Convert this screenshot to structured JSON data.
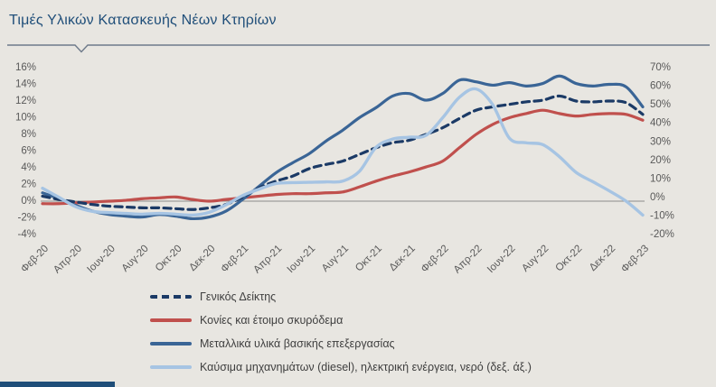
{
  "title": "Τιμές Υλικών Κατασκευής Νέων Κτηρίων",
  "colors": {
    "background": "#e8e6e1",
    "title": "#1f4e79",
    "axis_text": "#595959",
    "zero_line": "#8c8c8c",
    "title_rule": "#6e7a8a",
    "footer_bar": "#1f4e79"
  },
  "chart_data": {
    "type": "line",
    "title": "Τιμές Υλικών Κατασκευής Νέων Κτηρίων",
    "grid": false,
    "legend_position": "bottom",
    "x_tick_labels": [
      "Φεβ-20",
      "Απρ-20",
      "Ιουν-20",
      "Αυγ-20",
      "Οκτ-20",
      "Δεκ-20",
      "Φεβ-21",
      "Απρ-21",
      "Ιουν-21",
      "Αυγ-21",
      "Οκτ-21",
      "Δεκ-21",
      "Φεβ-22",
      "Απρ-22",
      "Ιουν-22",
      "Αυγ-22",
      "Οκτ-22",
      "Δεκ-22",
      "Φεβ-23"
    ],
    "x_months": [
      "Φεβ-20",
      "Μαρ-20",
      "Απρ-20",
      "Μαϊ-20",
      "Ιουν-20",
      "Ιουλ-20",
      "Αυγ-20",
      "Σεπ-20",
      "Οκτ-20",
      "Νοε-20",
      "Δεκ-20",
      "Ιαν-21",
      "Φεβ-21",
      "Μαρ-21",
      "Απρ-21",
      "Μαϊ-21",
      "Ιουν-21",
      "Ιουλ-21",
      "Αυγ-21",
      "Σεπ-21",
      "Οκτ-21",
      "Νοε-21",
      "Δεκ-21",
      "Ιαν-22",
      "Φεβ-22",
      "Μαρ-22",
      "Απρ-22",
      "Μαϊ-22",
      "Ιουν-22",
      "Ιουλ-22",
      "Αυγ-22",
      "Σεπ-22",
      "Οκτ-22",
      "Νοε-22",
      "Δεκ-22",
      "Ιαν-23",
      "Φεβ-23"
    ],
    "left_axis": {
      "min": -4,
      "max": 16,
      "step": 2,
      "ticks": [
        "16%",
        "14%",
        "12%",
        "10%",
        "8%",
        "6%",
        "4%",
        "2%",
        "0%",
        "-2%",
        "-4%"
      ]
    },
    "right_axis": {
      "min": -20,
      "max": 70,
      "step": 10,
      "ticks": [
        "70%",
        "60%",
        "50%",
        "40%",
        "30%",
        "20%",
        "10%",
        "0%",
        "-10%",
        "-20%"
      ]
    },
    "series": [
      {
        "name": "Γενικός Δείκτης",
        "axis": "left",
        "style": "dashed",
        "color": "#1b3a66",
        "values": [
          0.6,
          0.2,
          -0.1,
          -0.4,
          -0.6,
          -0.7,
          -0.8,
          -0.8,
          -0.9,
          -1.0,
          -0.8,
          -0.4,
          0.5,
          1.6,
          2.4,
          3.0,
          3.9,
          4.4,
          4.8,
          5.6,
          6.4,
          7.0,
          7.3,
          8.0,
          8.8,
          9.9,
          10.9,
          11.3,
          11.6,
          11.9,
          12.1,
          12.6,
          12.0,
          11.9,
          12.0,
          11.8,
          10.4
        ]
      },
      {
        "name": "Κονίες και έτοιμο σκυρόδεμα",
        "axis": "left",
        "style": "solid",
        "color": "#c0504d",
        "values": [
          -0.3,
          -0.3,
          -0.2,
          -0.1,
          0.0,
          0.1,
          0.3,
          0.4,
          0.5,
          0.2,
          0.0,
          0.2,
          0.4,
          0.6,
          0.8,
          0.9,
          0.9,
          1.0,
          1.1,
          1.7,
          2.4,
          3.0,
          3.5,
          4.1,
          4.8,
          6.4,
          8.0,
          9.2,
          10.0,
          10.5,
          10.9,
          10.5,
          10.2,
          10.4,
          10.5,
          10.4,
          9.7
        ]
      },
      {
        "name": "Μεταλλικά υλικά βασικής επεξεργασίας",
        "axis": "left",
        "style": "solid",
        "color": "#3a6596",
        "values": [
          1.0,
          0.3,
          -0.5,
          -1.2,
          -1.6,
          -1.8,
          -1.9,
          -1.6,
          -1.8,
          -2.1,
          -1.9,
          -1.2,
          0.2,
          1.8,
          3.4,
          4.6,
          5.7,
          7.2,
          8.5,
          10.0,
          11.2,
          12.6,
          12.9,
          12.1,
          12.9,
          14.5,
          14.3,
          13.9,
          14.2,
          13.8,
          14.1,
          15.0,
          14.1,
          13.8,
          14.0,
          13.7,
          11.3
        ]
      },
      {
        "name": "Καύσιμα μηχανημάτων (diesel), ηλεκτρική ενέργεια, νερό (δεξ. άξ.)",
        "axis": "right",
        "style": "solid",
        "color": "#a6c4e3",
        "values": [
          5,
          0,
          -5,
          -7.5,
          -8.2,
          -8.6,
          -9,
          -8.6,
          -9,
          -9.5,
          -8,
          -4,
          1,
          4.5,
          7.5,
          8,
          8.2,
          8.4,
          8.8,
          14,
          27,
          31.5,
          32.5,
          33.5,
          43,
          54,
          58.5,
          50,
          32,
          29.5,
          28.5,
          22,
          13.5,
          8.5,
          3.5,
          -2,
          -9.5
        ]
      }
    ]
  }
}
